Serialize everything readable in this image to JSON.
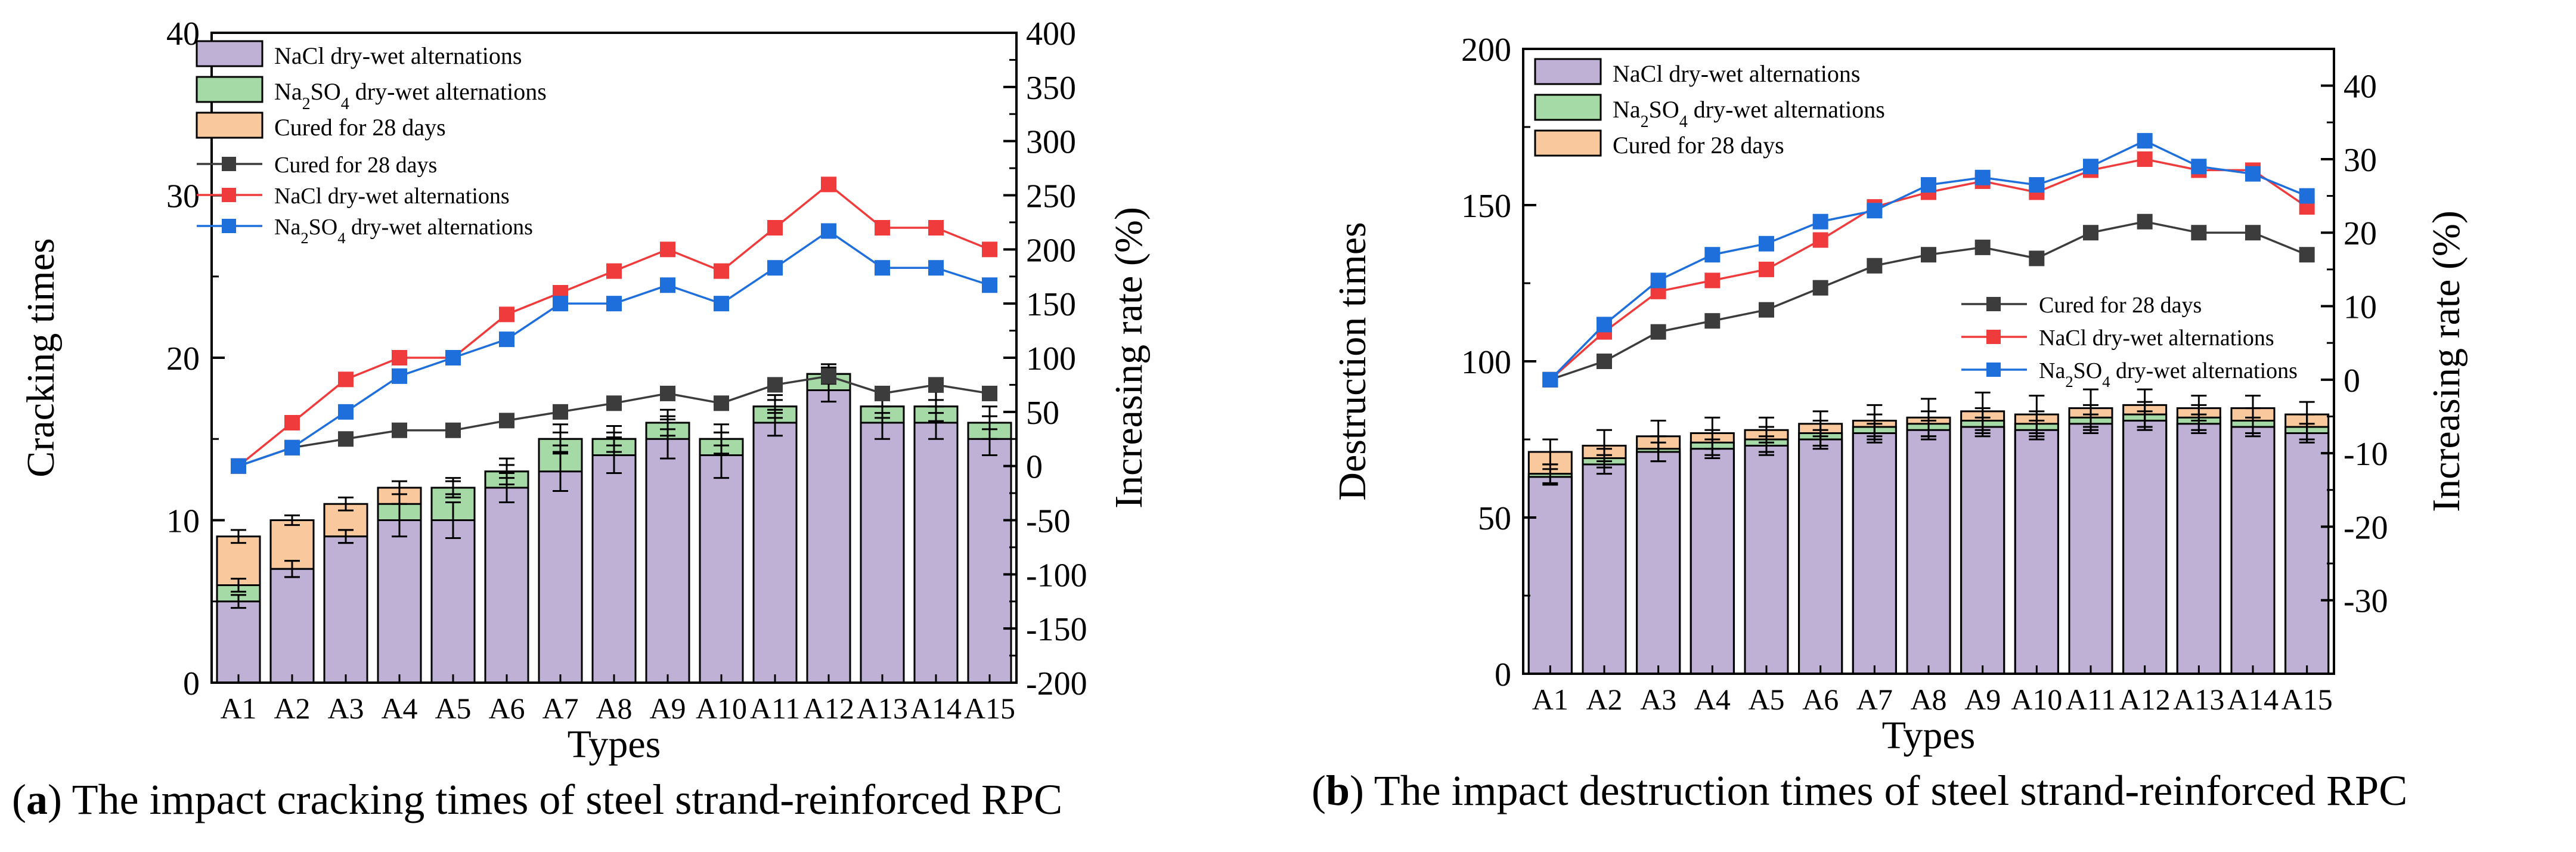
{
  "colors": {
    "nacl_bar": "#bfb0d6",
    "na2so4_bar": "#a5d9a5",
    "cured_bar": "#f9c99d",
    "cured_line": "#3c3c3c",
    "nacl_line": "#ef3b3b",
    "na2so4_line": "#1e6fdc"
  },
  "captions": {
    "a": {
      "label": "a",
      "text": "The impact cracking times of steel strand-reinforced RPC"
    },
    "b": {
      "label": "b",
      "text": "The impact destruction times of steel strand-reinforced RPC"
    }
  },
  "chart_data": [
    {
      "id": "a",
      "type": "bar",
      "bar_mode": "overlay",
      "title": "",
      "xlabel": "Types",
      "ylabel": "Cracking times",
      "y2label": "Increasing rate (%)",
      "ylim": [
        0,
        40
      ],
      "yticks": [
        0,
        10,
        20,
        30,
        40
      ],
      "y2lim": [
        -200,
        400
      ],
      "y2ticks": [
        -200,
        -150,
        -100,
        -50,
        0,
        50,
        100,
        150,
        200,
        250,
        300,
        350,
        400
      ],
      "legend_position": "top-left",
      "categories": [
        "A1",
        "A2",
        "A3",
        "A4",
        "A5",
        "A6",
        "A7",
        "A8",
        "A9",
        "A10",
        "A11",
        "A12",
        "A13",
        "A14",
        "A15"
      ],
      "series": [
        {
          "name": "NaCl dry-wet alternations",
          "kind": "bar",
          "color_key": "nacl_bar",
          "values": [
            5,
            7,
            9,
            10,
            10,
            12,
            13,
            14,
            15,
            14,
            16,
            18,
            16,
            16,
            15
          ],
          "errors": [
            0.4,
            0.5,
            0.4,
            1.0,
            1.1,
            0.9,
            1.2,
            1.1,
            1.2,
            1.4,
            0.8,
            0.7,
            1.0,
            1.0,
            1.0
          ]
        },
        {
          "name": "Na2SO4 dry-wet alternations",
          "kind": "bar",
          "color_key": "na2so4_bar",
          "values": [
            6,
            7,
            9,
            11,
            12,
            13,
            15,
            15,
            16,
            15,
            17,
            19,
            17,
            17,
            16
          ],
          "errors": [
            0.4,
            0.5,
            0.4,
            1.0,
            0.6,
            0.8,
            0.9,
            0.8,
            0.8,
            0.9,
            0.7,
            0.6,
            0.7,
            0.9,
            1.0
          ]
        },
        {
          "name": "Cured for 28 days",
          "kind": "bar",
          "color_key": "cured_bar",
          "values": [
            9,
            10,
            11,
            12,
            12,
            13,
            15,
            15,
            16,
            15,
            17,
            19,
            17,
            17,
            16
          ],
          "errors": [
            0.4,
            0.3,
            0.4,
            0.4,
            0.4,
            0.4,
            0.4,
            0.4,
            0.4,
            0.4,
            0.4,
            0.4,
            0.4,
            0.4,
            0.4
          ]
        },
        {
          "name": "Cured for 28 days",
          "kind": "line",
          "axis": "right",
          "color_key": "cured_line",
          "values": [
            0,
            17,
            25,
            33,
            33,
            42,
            50,
            58,
            67,
            58,
            75,
            83,
            67,
            75,
            67
          ]
        },
        {
          "name": "NaCl dry-wet alternations",
          "kind": "line",
          "axis": "right",
          "color_key": "nacl_line",
          "values": [
            0,
            40,
            80,
            100,
            100,
            140,
            160,
            180,
            200,
            180,
            220,
            260,
            220,
            220,
            200
          ]
        },
        {
          "name": "Na2SO4 dry-wet alternations",
          "kind": "line",
          "axis": "right",
          "color_key": "na2so4_line",
          "values": [
            0,
            17,
            50,
            83,
            100,
            117,
            150,
            150,
            167,
            150,
            183,
            217,
            183,
            183,
            167
          ]
        }
      ],
      "legend": [
        {
          "kind": "bar",
          "color_key": "nacl_bar",
          "prefix": "NaCl dry-wet alternations",
          "sub": "",
          "suffix": ""
        },
        {
          "kind": "bar",
          "color_key": "na2so4_bar",
          "prefix": "Na",
          "sub": "2",
          "mid": "SO",
          "sub2": "4",
          "suffix": " dry-wet alternations"
        },
        {
          "kind": "bar",
          "color_key": "cured_bar",
          "prefix": "Cured for 28 days",
          "sub": "",
          "suffix": ""
        },
        {
          "kind": "line",
          "color_key": "cured_line",
          "prefix": "Cured for 28 days",
          "sub": "",
          "suffix": ""
        },
        {
          "kind": "line",
          "color_key": "nacl_line",
          "prefix": "NaCl dry-wet alternations",
          "sub": "",
          "suffix": ""
        },
        {
          "kind": "line",
          "color_key": "na2so4_line",
          "prefix": "Na",
          "sub": "2",
          "mid": "SO",
          "sub2": "4",
          "suffix": " dry-wet alternations"
        }
      ]
    },
    {
      "id": "b",
      "type": "bar",
      "bar_mode": "overlay",
      "title": "",
      "xlabel": "Types",
      "ylabel": "Destruction times",
      "y2label": "Increasing rate (%)",
      "ylim": [
        0,
        200
      ],
      "yticks": [
        0,
        50,
        100,
        150,
        200
      ],
      "y2lim": [
        -40,
        45
      ],
      "y2ticks": [
        -30,
        -20,
        -10,
        0,
        10,
        20,
        30,
        40
      ],
      "legend_position": "top-left",
      "categories": [
        "A1",
        "A2",
        "A3",
        "A4",
        "A5",
        "A6",
        "A7",
        "A8",
        "A9",
        "A10",
        "A11",
        "A12",
        "A13",
        "A14",
        "A15"
      ],
      "series": [
        {
          "name": "NaCl dry-wet alternations",
          "kind": "bar",
          "color_key": "nacl_bar",
          "values": [
            63,
            67,
            71,
            72,
            73,
            75,
            77,
            78,
            79,
            78,
            80,
            81,
            80,
            79,
            77
          ],
          "errors": [
            2.5,
            3,
            3,
            3,
            3,
            3,
            3,
            3,
            3,
            3,
            3,
            3,
            3,
            3,
            3
          ]
        },
        {
          "name": "Na2SO4 dry-wet alternations",
          "kind": "bar",
          "color_key": "na2so4_bar",
          "values": [
            64,
            69,
            72,
            74,
            75,
            77,
            79,
            80,
            81,
            80,
            82,
            83,
            82,
            81,
            79
          ],
          "errors": [
            3,
            3,
            4,
            4,
            4,
            4,
            4,
            4,
            4,
            4,
            4,
            4,
            4,
            4,
            4
          ]
        },
        {
          "name": "Cured for 28 days",
          "kind": "bar",
          "color_key": "cured_bar",
          "values": [
            71,
            73,
            76,
            77,
            78,
            80,
            81,
            82,
            84,
            83,
            85,
            86,
            85,
            85,
            83
          ],
          "errors": [
            4,
            5,
            5,
            5,
            4,
            4,
            5,
            6,
            6,
            6,
            6,
            5,
            4,
            4,
            4
          ]
        },
        {
          "name": "Cured for 28 days",
          "kind": "line",
          "axis": "right",
          "color_key": "cured_line",
          "values": [
            0,
            2.5,
            6.5,
            8,
            9.5,
            12.5,
            15.5,
            17,
            18,
            16.5,
            20,
            21.5,
            20,
            20,
            17
          ]
        },
        {
          "name": "NaCl dry-wet alternations",
          "kind": "line",
          "axis": "right",
          "color_key": "nacl_line",
          "values": [
            0,
            6.5,
            12,
            13.5,
            15,
            19,
            23.5,
            25.5,
            27,
            25.5,
            28.5,
            30,
            28.5,
            28.5,
            23.5
          ]
        },
        {
          "name": "Na2SO4 dry-wet alternations",
          "kind": "line",
          "axis": "right",
          "color_key": "na2so4_line",
          "values": [
            0,
            7.5,
            13.5,
            17,
            18.5,
            21.5,
            23,
            26.5,
            27.5,
            26.5,
            29,
            32.5,
            29,
            28,
            25
          ]
        }
      ],
      "legend": [
        {
          "kind": "bar",
          "color_key": "nacl_bar",
          "prefix": "NaCl dry-wet alternations",
          "sub": "",
          "suffix": ""
        },
        {
          "kind": "bar",
          "color_key": "na2so4_bar",
          "prefix": "Na",
          "sub": "2",
          "mid": "SO",
          "sub2": "4",
          "suffix": " dry-wet alternations"
        },
        {
          "kind": "bar",
          "color_key": "cured_bar",
          "prefix": "Cured for 28 days",
          "sub": "",
          "suffix": ""
        },
        {
          "kind": "line",
          "color_key": "cured_line",
          "prefix": "Cured for 28 days",
          "sub": "",
          "suffix": ""
        },
        {
          "kind": "line",
          "color_key": "nacl_line",
          "prefix": "NaCl dry-wet alternations",
          "sub": "",
          "suffix": ""
        },
        {
          "kind": "line",
          "color_key": "na2so4_line",
          "prefix": "Na",
          "sub": "2",
          "mid": "SO",
          "sub2": "4",
          "suffix": " dry-wet alternations"
        }
      ]
    }
  ]
}
